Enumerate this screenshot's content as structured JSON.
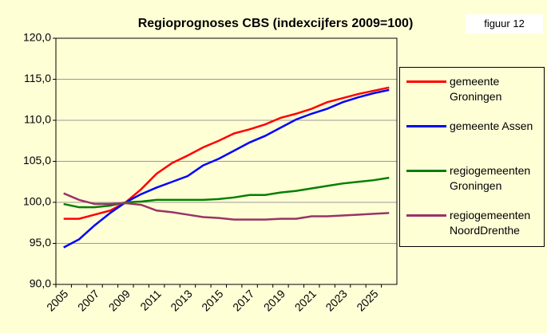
{
  "chart_data": {
    "type": "line",
    "title": "Regioprognoses CBS (indexcijfers 2009=100)",
    "annotation": "figuur 12",
    "categories": [
      "2005",
      null,
      "2007",
      null,
      "2009",
      null,
      "2011",
      null,
      "2013",
      null,
      "2015",
      null,
      "2017",
      null,
      "2019",
      null,
      "2021",
      null,
      "2023",
      null,
      "2025",
      null
    ],
    "series": [
      {
        "name": "gemeente Groningen",
        "color": "#ff0000",
        "values": [
          98.0,
          98.0,
          98.5,
          99.0,
          100.0,
          101.6,
          103.5,
          104.8,
          105.7,
          106.7,
          107.5,
          108.4,
          108.9,
          109.5,
          110.3,
          110.8,
          111.4,
          112.2,
          112.7,
          113.2,
          113.6,
          114.0
        ]
      },
      {
        "name": "gemeente Assen",
        "color": "#0000ff",
        "values": [
          94.5,
          95.5,
          97.2,
          98.7,
          100.0,
          101.0,
          101.8,
          102.5,
          103.2,
          104.5,
          105.3,
          106.3,
          107.3,
          108.1,
          109.1,
          110.1,
          110.8,
          111.4,
          112.2,
          112.8,
          113.3,
          113.7
        ]
      },
      {
        "name": "regiogemeenten Groningen",
        "color": "#008000",
        "values": [
          99.8,
          99.4,
          99.4,
          99.6,
          100.0,
          100.1,
          100.3,
          100.3,
          100.3,
          100.3,
          100.4,
          100.6,
          100.9,
          100.9,
          101.2,
          101.4,
          101.7,
          102.0,
          102.3,
          102.5,
          102.7,
          103.0
        ]
      },
      {
        "name": "regiogemeenten NoordDrenthe",
        "color": "#993366",
        "values": [
          101.1,
          100.3,
          99.8,
          99.8,
          99.9,
          99.7,
          99.0,
          98.8,
          98.5,
          98.2,
          98.1,
          97.9,
          97.9,
          97.9,
          98.0,
          98.0,
          98.3,
          98.3,
          98.4,
          98.5,
          98.6,
          98.7
        ]
      }
    ],
    "ylim": [
      90,
      120
    ],
    "yticks": [
      {
        "value": 90,
        "label": "90,0"
      },
      {
        "value": 95,
        "label": "95,0"
      },
      {
        "value": 100,
        "label": "100,0"
      },
      {
        "value": 105,
        "label": "105,0"
      },
      {
        "value": 110,
        "label": "110,0"
      },
      {
        "value": 115,
        "label": "115,0"
      },
      {
        "value": 120,
        "label": "120,0"
      }
    ],
    "grid": true
  }
}
